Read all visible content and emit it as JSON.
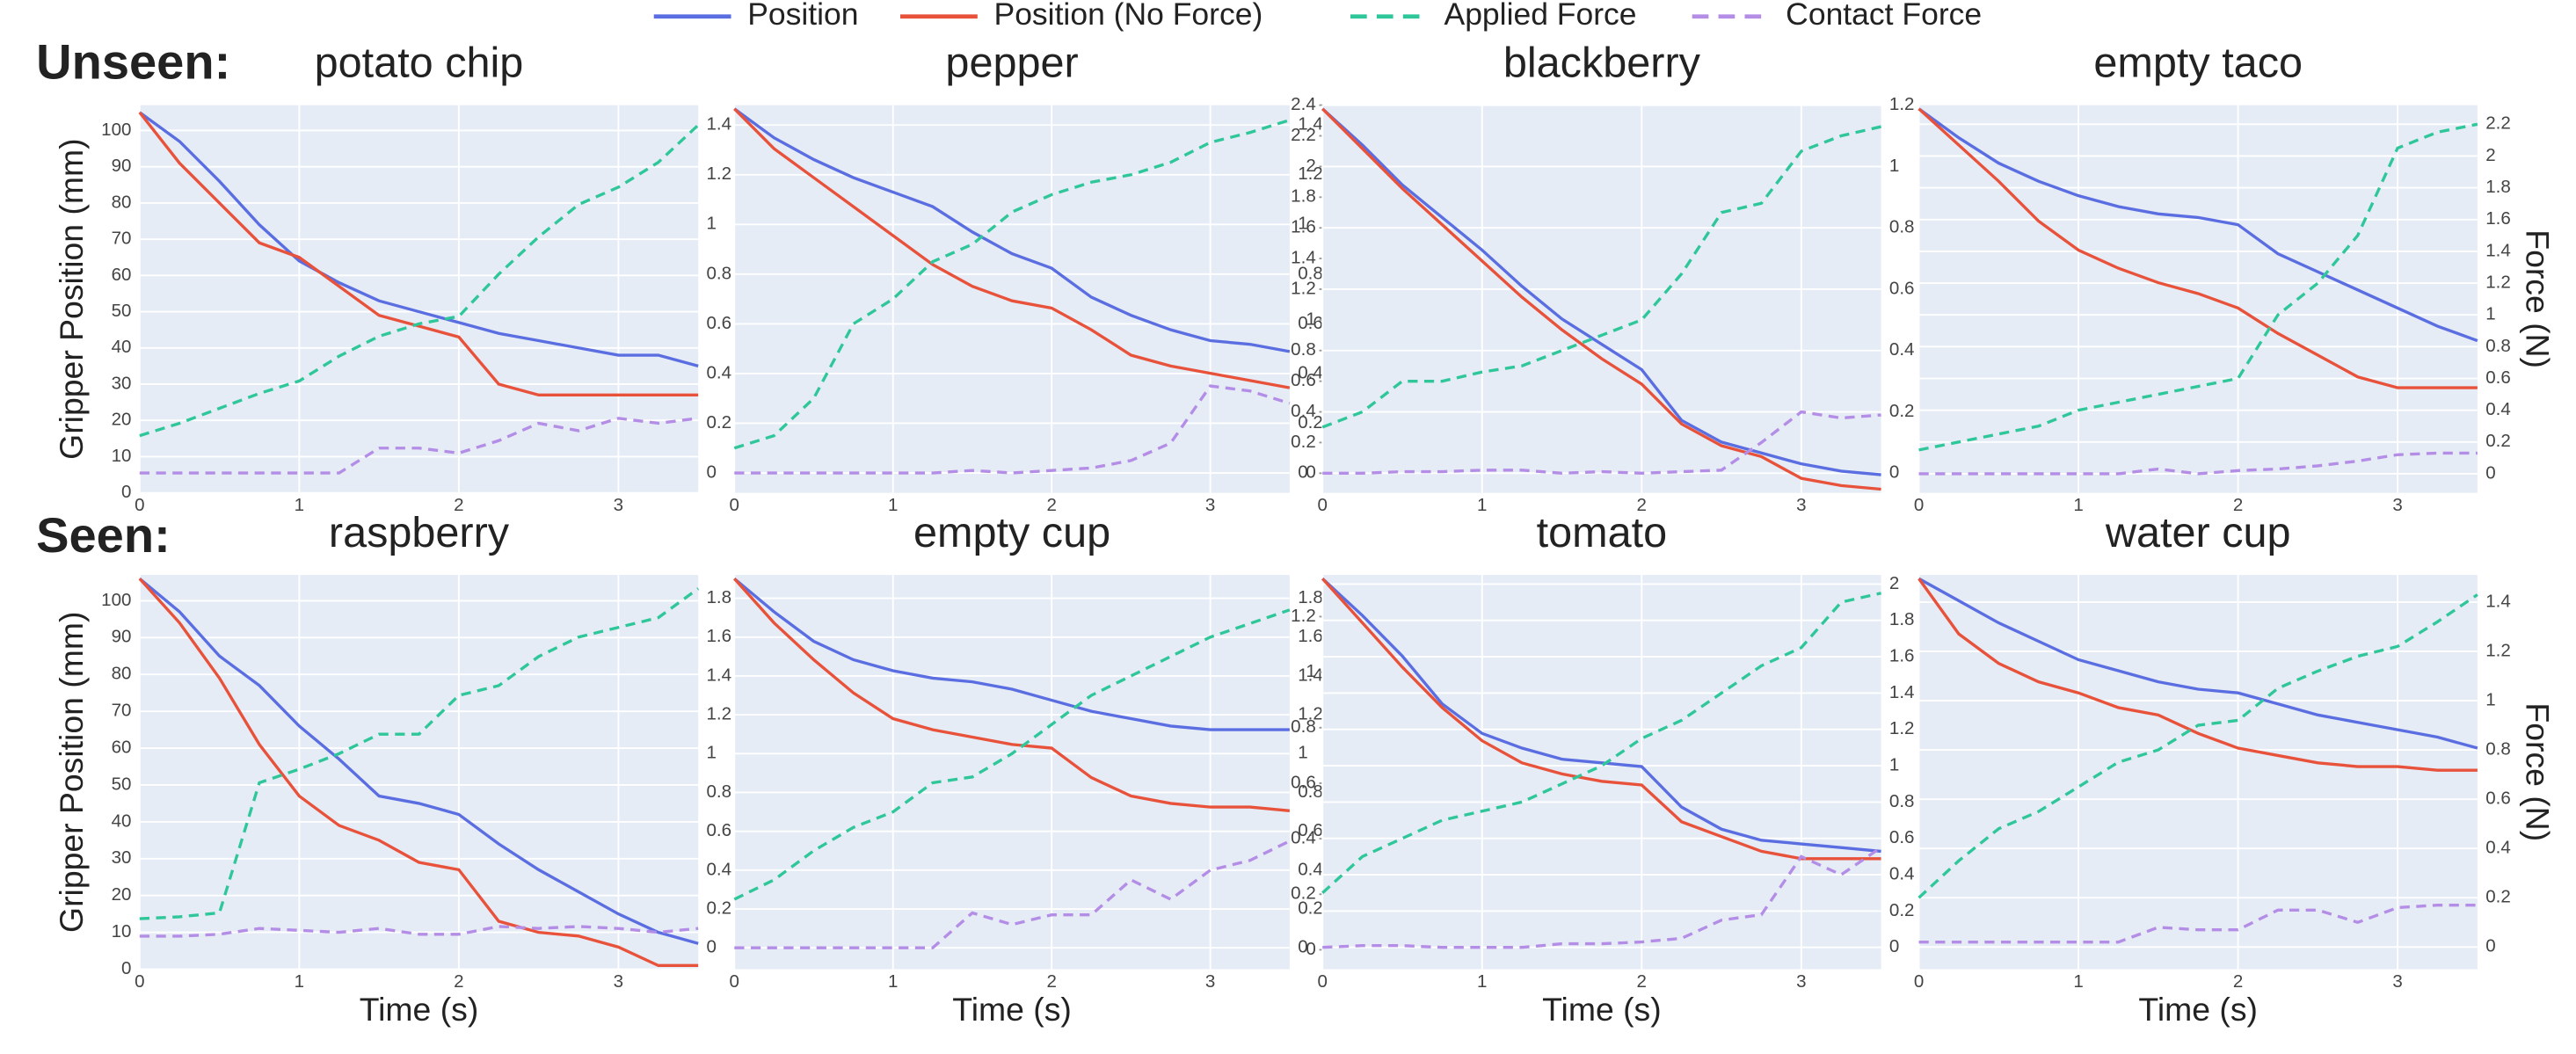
{
  "legend": {
    "entries": [
      {
        "name": "Position",
        "color": "#5b6ee1",
        "dash": false
      },
      {
        "name": "Position (No Force)",
        "color": "#e8523b",
        "dash": false
      },
      {
        "name": "Applied Force",
        "color": "#2fc79a",
        "dash": true
      },
      {
        "name": "Contact Force",
        "color": "#b48de6",
        "dash": true
      }
    ]
  },
  "row_labels": [
    "Unseen:",
    "Seen:"
  ],
  "chart_data": [
    {
      "type": "line",
      "title": "potato chip",
      "ylabel": "Gripper Position (mm)",
      "x": [
        0,
        0.25,
        0.5,
        0.75,
        1,
        1.25,
        1.5,
        1.75,
        2,
        2.25,
        2.5,
        2.75,
        3,
        3.25,
        3.5
      ],
      "xlim": [
        0,
        3.5
      ],
      "xticks": [
        0,
        1,
        2,
        3
      ],
      "ylim": [
        0,
        107
      ],
      "yticks": [
        0,
        10,
        20,
        30,
        40,
        50,
        60,
        70,
        80,
        90,
        100
      ],
      "y2lim": [
        -0.08,
        1.48
      ],
      "y2ticks": [
        0,
        0.2,
        0.4,
        0.6,
        0.8,
        1,
        1.2,
        1.4
      ],
      "series": [
        {
          "values": [
            105,
            97,
            86,
            74,
            64,
            58,
            53,
            50,
            47,
            44,
            42,
            40,
            38,
            38,
            35
          ]
        },
        {
          "values": [
            105,
            91,
            80,
            69,
            65,
            57,
            49,
            46,
            43,
            30,
            27,
            27,
            27,
            27,
            27
          ]
        },
        {
          "axis": "y2",
          "values": [
            0.15,
            0.2,
            0.26,
            0.32,
            0.37,
            0.47,
            0.55,
            0.6,
            0.63,
            0.8,
            0.95,
            1.08,
            1.15,
            1.25,
            1.4
          ]
        },
        {
          "axis": "y2",
          "values": [
            0,
            0,
            0,
            0,
            0,
            0,
            0.1,
            0.1,
            0.08,
            0.13,
            0.2,
            0.17,
            0.22,
            0.2,
            0.22
          ]
        }
      ]
    },
    {
      "type": "line",
      "title": "pepper",
      "x": [
        0,
        0.25,
        0.5,
        0.75,
        1,
        1.25,
        1.5,
        1.75,
        2,
        2.25,
        2.5,
        2.75,
        3,
        3.25,
        3.5
      ],
      "xlim": [
        0,
        3.5
      ],
      "xticks": [
        0,
        1,
        2,
        3
      ],
      "ylim": [
        0,
        107
      ],
      "y2lim": [
        -0.08,
        1.48
      ],
      "y2ticks": [
        0,
        0.2,
        0.4,
        0.6,
        0.8,
        1,
        1.2,
        1.4
      ],
      "series": [
        {
          "values": [
            106,
            98,
            92,
            87,
            83,
            79,
            72,
            66,
            62,
            54,
            49,
            45,
            42,
            41,
            39
          ]
        },
        {
          "values": [
            106,
            95,
            87,
            79,
            71,
            63,
            57,
            53,
            51,
            45,
            38,
            35,
            33,
            31,
            29
          ]
        },
        {
          "axis": "y2",
          "values": [
            0.1,
            0.15,
            0.3,
            0.6,
            0.7,
            0.85,
            0.92,
            1.05,
            1.12,
            1.17,
            1.2,
            1.25,
            1.33,
            1.37,
            1.42
          ]
        },
        {
          "axis": "y2",
          "values": [
            0,
            0,
            0,
            0,
            0,
            0,
            0.01,
            0,
            0.01,
            0.02,
            0.05,
            0.12,
            0.35,
            0.33,
            0.28
          ]
        }
      ]
    },
    {
      "type": "line",
      "title": "blackberry",
      "x": [
        0,
        0.25,
        0.5,
        0.75,
        1,
        1.25,
        1.5,
        1.75,
        2,
        2.25,
        2.5,
        2.75,
        3,
        3.25,
        3.5
      ],
      "xlim": [
        0,
        3.5
      ],
      "xticks": [
        0,
        1,
        2,
        3
      ],
      "ylim": [
        0,
        107
      ],
      "y2lim": [
        -0.064,
        1.2
      ],
      "y2ticks": [
        0,
        0.2,
        0.4,
        0.6,
        0.8,
        1,
        1.2
      ],
      "y3lim": [
        -0.128,
        2.4
      ],
      "y3ticks": [
        0,
        0.2,
        0.4,
        0.6,
        0.8,
        1,
        1.2,
        1.4,
        1.6,
        1.8,
        2,
        2.2,
        2.4
      ],
      "series": [
        {
          "values": [
            106,
            96,
            85,
            76,
            67,
            57,
            48,
            41,
            34,
            20,
            14,
            11,
            8,
            6,
            5
          ]
        },
        {
          "values": [
            106,
            95,
            84,
            74,
            64,
            54,
            45,
            37,
            30,
            19,
            13,
            10,
            4,
            2,
            1
          ]
        },
        {
          "axis": "y2",
          "values": [
            0.15,
            0.2,
            0.3,
            0.3,
            0.33,
            0.35,
            0.4,
            0.45,
            0.5,
            0.65,
            0.85,
            0.88,
            1.05,
            1.1,
            1.13
          ]
        },
        {
          "axis": "y2",
          "values": [
            0,
            0,
            0.005,
            0.005,
            0.01,
            0.01,
            0,
            0.005,
            0,
            0.005,
            0.01,
            0.1,
            0.2,
            0.18,
            0.19
          ]
        }
      ]
    },
    {
      "type": "line",
      "title": "empty taco",
      "y2label": "Force (N)",
      "x": [
        0,
        0.25,
        0.5,
        0.75,
        1,
        1.25,
        1.5,
        1.75,
        2,
        2.25,
        2.5,
        2.75,
        3,
        3.25,
        3.5
      ],
      "xlim": [
        0,
        3.5
      ],
      "xticks": [
        0,
        1,
        2,
        3
      ],
      "ylim": [
        0,
        107
      ],
      "y2lim": [
        -0.12,
        2.32
      ],
      "y2ticks": [
        0,
        0.2,
        0.4,
        0.6,
        0.8,
        1,
        1.2,
        1.4,
        1.6,
        1.8,
        2,
        2.2
      ],
      "series": [
        {
          "values": [
            106,
            98,
            91,
            86,
            82,
            79,
            77,
            76,
            74,
            66,
            61,
            56,
            51,
            46,
            42
          ]
        },
        {
          "values": [
            106,
            96,
            86,
            75,
            67,
            62,
            58,
            55,
            51,
            44,
            38,
            32,
            29,
            29,
            29
          ]
        },
        {
          "axis": "y2",
          "values": [
            0.15,
            0.2,
            0.25,
            0.3,
            0.4,
            0.45,
            0.5,
            0.55,
            0.6,
            1.0,
            1.2,
            1.5,
            2.05,
            2.15,
            2.2
          ]
        },
        {
          "axis": "y2",
          "values": [
            0,
            0,
            0,
            0,
            0,
            0,
            0.03,
            0,
            0.02,
            0.03,
            0.05,
            0.08,
            0.12,
            0.13,
            0.13
          ]
        }
      ]
    },
    {
      "type": "line",
      "title": "raspberry",
      "ylabel": "Gripper Position (mm)",
      "xlabel": "Time (s)",
      "x": [
        0,
        0.25,
        0.5,
        0.75,
        1,
        1.25,
        1.5,
        1.75,
        2,
        2.25,
        2.5,
        2.75,
        3,
        3.25,
        3.5
      ],
      "xlim": [
        0,
        3.5
      ],
      "xticks": [
        0,
        1,
        2,
        3
      ],
      "ylim": [
        0,
        107
      ],
      "yticks": [
        0,
        10,
        20,
        30,
        40,
        50,
        60,
        70,
        80,
        90,
        100
      ],
      "y2lim": [
        -0.11,
        1.92
      ],
      "y2ticks": [
        0,
        0.2,
        0.4,
        0.6,
        0.8,
        1,
        1.2,
        1.4,
        1.6,
        1.8
      ],
      "series": [
        {
          "values": [
            106,
            97,
            85,
            77,
            66,
            57,
            47,
            45,
            42,
            34,
            27,
            21,
            15,
            10,
            7
          ]
        },
        {
          "values": [
            106,
            94,
            79,
            61,
            47,
            39,
            35,
            29,
            27,
            13,
            10,
            9,
            6,
            1,
            1
          ]
        },
        {
          "axis": "y2",
          "values": [
            0.15,
            0.16,
            0.18,
            0.85,
            0.92,
            1.0,
            1.1,
            1.1,
            1.3,
            1.35,
            1.5,
            1.6,
            1.65,
            1.7,
            1.85
          ]
        },
        {
          "axis": "y2",
          "values": [
            0.06,
            0.06,
            0.07,
            0.1,
            0.09,
            0.08,
            0.1,
            0.07,
            0.07,
            0.11,
            0.1,
            0.11,
            0.1,
            0.08,
            0.1
          ]
        }
      ]
    },
    {
      "type": "line",
      "title": "empty cup",
      "xlabel": "Time (s)",
      "x": [
        0,
        0.25,
        0.5,
        0.75,
        1,
        1.25,
        1.5,
        1.75,
        2,
        2.25,
        2.5,
        2.75,
        3,
        3.25,
        3.5
      ],
      "xlim": [
        0,
        3.5
      ],
      "xticks": [
        0,
        1,
        2,
        3
      ],
      "ylim": [
        0,
        107
      ],
      "y2lim": [
        -0.11,
        1.92
      ],
      "y2ticks": [
        0,
        0.2,
        0.4,
        0.6,
        0.8,
        1,
        1.2,
        1.4,
        1.6,
        1.8
      ],
      "series": [
        {
          "values": [
            106,
            97,
            89,
            84,
            81,
            79,
            78,
            76,
            73,
            70,
            68,
            66,
            65,
            65,
            65
          ]
        },
        {
          "values": [
            106,
            94,
            84,
            75,
            68,
            65,
            63,
            61,
            60,
            52,
            47,
            45,
            44,
            44,
            43
          ]
        },
        {
          "axis": "y2",
          "values": [
            0.25,
            0.35,
            0.5,
            0.62,
            0.7,
            0.85,
            0.88,
            1.0,
            1.15,
            1.3,
            1.4,
            1.5,
            1.6,
            1.67,
            1.74
          ]
        },
        {
          "axis": "y2",
          "values": [
            0,
            0,
            0,
            0,
            0,
            0,
            0.18,
            0.12,
            0.17,
            0.17,
            0.35,
            0.25,
            0.4,
            0.45,
            0.55
          ]
        }
      ]
    },
    {
      "type": "line",
      "title": "tomato",
      "xlabel": "Time (s)",
      "x": [
        0,
        0.25,
        0.5,
        0.75,
        1,
        1.25,
        1.5,
        1.75,
        2,
        2.25,
        2.5,
        2.75,
        3,
        3.25,
        3.5
      ],
      "xlim": [
        0,
        3.5
      ],
      "xticks": [
        0,
        1,
        2,
        3
      ],
      "ylim": [
        0,
        107
      ],
      "y2lim": [
        -0.12,
        2.05
      ],
      "y2ticks": [
        0,
        0.2,
        0.4,
        0.6,
        0.8,
        1,
        1.2,
        1.4,
        1.6,
        1.8,
        2
      ],
      "y3lim": [
        -0.07,
        1.35
      ],
      "y3ticks": [
        0,
        0.2,
        0.4,
        0.6,
        0.8,
        1,
        1.2
      ],
      "series": [
        {
          "values": [
            106,
            96,
            85,
            72,
            64,
            60,
            57,
            56,
            55,
            44,
            38,
            35,
            34,
            33,
            32
          ]
        },
        {
          "values": [
            106,
            94,
            82,
            71,
            62,
            56,
            53,
            51,
            50,
            40,
            36,
            32,
            30,
            30,
            30
          ]
        },
        {
          "axis": "y2",
          "values": [
            0.3,
            0.5,
            0.6,
            0.7,
            0.75,
            0.8,
            0.9,
            1.0,
            1.15,
            1.25,
            1.4,
            1.55,
            1.65,
            1.9,
            1.95
          ]
        },
        {
          "axis": "y2",
          "values": [
            0,
            0.01,
            0.01,
            0,
            0,
            0,
            0.02,
            0.02,
            0.03,
            0.05,
            0.15,
            0.18,
            0.5,
            0.4,
            0.55
          ]
        }
      ]
    },
    {
      "type": "line",
      "title": "water cup",
      "xlabel": "Time (s)",
      "y2label": "Force (N)",
      "x": [
        0,
        0.25,
        0.5,
        0.75,
        1,
        1.25,
        1.5,
        1.75,
        2,
        2.25,
        2.5,
        2.75,
        3,
        3.25,
        3.5
      ],
      "xlim": [
        0,
        3.5
      ],
      "xticks": [
        0,
        1,
        2,
        3
      ],
      "ylim": [
        0,
        107
      ],
      "y2lim": [
        -0.09,
        1.51
      ],
      "y2ticks": [
        0,
        0.2,
        0.4,
        0.6,
        0.8,
        1,
        1.2,
        1.4
      ],
      "series": [
        {
          "values": [
            106,
            100,
            94,
            89,
            84,
            81,
            78,
            76,
            75,
            72,
            69,
            67,
            65,
            63,
            60
          ]
        },
        {
          "values": [
            106,
            91,
            83,
            78,
            75,
            71,
            69,
            64,
            60,
            58,
            56,
            55,
            55,
            54,
            54
          ]
        },
        {
          "axis": "y2",
          "values": [
            0.2,
            0.35,
            0.48,
            0.55,
            0.65,
            0.75,
            0.8,
            0.9,
            0.92,
            1.05,
            1.12,
            1.18,
            1.22,
            1.32,
            1.43
          ]
        },
        {
          "axis": "y2",
          "values": [
            0.02,
            0.02,
            0.02,
            0.02,
            0.02,
            0.02,
            0.08,
            0.07,
            0.07,
            0.15,
            0.15,
            0.1,
            0.16,
            0.17,
            0.17
          ]
        }
      ]
    }
  ]
}
